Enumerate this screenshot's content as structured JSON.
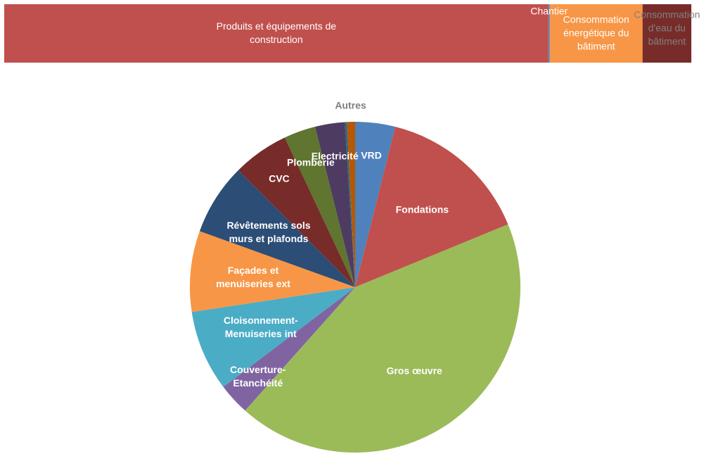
{
  "chart_data": [
    {
      "type": "bar",
      "orientation": "horizontal",
      "stacked": true,
      "series": [
        {
          "name": "Produits et équipements de construction",
          "color": "#c0504d",
          "values": [
            79.2
          ]
        },
        {
          "name": "Chantier",
          "color": "#4f81bd",
          "values": [
            0.2
          ]
        },
        {
          "name": "Consommation énergétique du bâtiment",
          "color": "#f79646",
          "values": [
            13.5
          ]
        },
        {
          "name": "Consommation d'eau du bâtiment",
          "color": "#772c2a",
          "values": [
            7.1
          ]
        }
      ]
    },
    {
      "type": "pie",
      "categories": [
        "VRD",
        "Fondations",
        "Gros œuvre",
        "Couverture-Etanchéité",
        "Cloisonnement-Menuiseries int",
        "Façades et menuiseries ext",
        "Révêtements sols murs et plafonds",
        "CVC",
        "Plomberie",
        "Electricité",
        null,
        "Autres"
      ],
      "values": [
        3.9,
        14.9,
        42.8,
        3.1,
        7.9,
        7.9,
        7.0,
        5.5,
        3.1,
        2.9,
        0.2,
        0.8
      ],
      "colors": [
        "#4f81bd",
        "#c0504d",
        "#9bbb59",
        "#8064a2",
        "#4bacc6",
        "#f79646",
        "#2c4d75",
        "#772c2a",
        "#5f7530",
        "#4d3b62",
        "#276a7c",
        "#b65708"
      ]
    }
  ]
}
